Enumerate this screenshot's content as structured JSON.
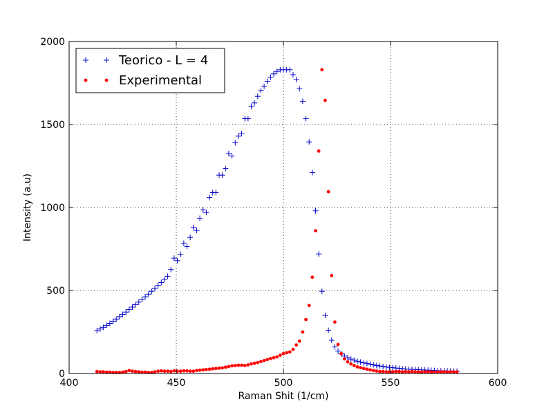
{
  "chart_data": {
    "type": "scatter",
    "xlabel": "Raman Shit (1/cm)",
    "ylabel": "Intensity (a.u)",
    "xlim": [
      400,
      600
    ],
    "ylim": [
      0,
      2000
    ],
    "x_ticks": [
      "400",
      "450",
      "500",
      "550",
      "600"
    ],
    "y_ticks": [
      "0",
      "500",
      "1000",
      "1500",
      "2000"
    ],
    "grid": "dotted",
    "legend_position": "top-left",
    "series": [
      {
        "name": "Teorico - L = 4",
        "marker": "plus",
        "color": "#0000cc",
        "points": [
          [
            413,
            258
          ],
          [
            414.5,
            268
          ],
          [
            416,
            278
          ],
          [
            417.5,
            290
          ],
          [
            419,
            302
          ],
          [
            420.5,
            315
          ],
          [
            422,
            328
          ],
          [
            423.5,
            342
          ],
          [
            425,
            356
          ],
          [
            426.5,
            370
          ],
          [
            428,
            385
          ],
          [
            429.5,
            400
          ],
          [
            431,
            415
          ],
          [
            432.5,
            430
          ],
          [
            434,
            446
          ],
          [
            435.5,
            462
          ],
          [
            437,
            478
          ],
          [
            438.5,
            495
          ],
          [
            440,
            512
          ],
          [
            441.5,
            530
          ],
          [
            443,
            548
          ],
          [
            444.5,
            567
          ],
          [
            446,
            586
          ],
          [
            447.5,
            626
          ],
          [
            449,
            695
          ],
          [
            450.5,
            680
          ],
          [
            452,
            718
          ],
          [
            453.5,
            785
          ],
          [
            455,
            765
          ],
          [
            456.5,
            820
          ],
          [
            458,
            880
          ],
          [
            459.5,
            862
          ],
          [
            461,
            935
          ],
          [
            462.5,
            985
          ],
          [
            464,
            970
          ],
          [
            465.5,
            1060
          ],
          [
            467,
            1090
          ],
          [
            468.5,
            1090
          ],
          [
            470,
            1195
          ],
          [
            471.5,
            1195
          ],
          [
            473,
            1235
          ],
          [
            474.5,
            1325
          ],
          [
            476,
            1310
          ],
          [
            477.5,
            1390
          ],
          [
            479,
            1430
          ],
          [
            480.5,
            1445
          ],
          [
            482,
            1535
          ],
          [
            483.5,
            1535
          ],
          [
            485,
            1610
          ],
          [
            486.5,
            1630
          ],
          [
            488,
            1670
          ],
          [
            489.5,
            1705
          ],
          [
            491,
            1730
          ],
          [
            492.5,
            1760
          ],
          [
            494,
            1785
          ],
          [
            495.5,
            1805
          ],
          [
            497,
            1820
          ],
          [
            498.5,
            1830
          ],
          [
            500,
            1830
          ],
          [
            501.5,
            1830
          ],
          [
            503,
            1830
          ],
          [
            504.5,
            1800
          ],
          [
            506,
            1770
          ],
          [
            507.5,
            1715
          ],
          [
            509,
            1640
          ],
          [
            510.5,
            1535
          ],
          [
            512,
            1395
          ],
          [
            513.5,
            1210
          ],
          [
            515,
            980
          ],
          [
            516.5,
            720
          ],
          [
            518,
            495
          ],
          [
            519.5,
            350
          ],
          [
            521,
            260
          ],
          [
            522.5,
            200
          ],
          [
            524,
            160
          ],
          [
            525.5,
            135
          ],
          [
            527,
            118
          ],
          [
            528.5,
            105
          ],
          [
            530,
            95
          ],
          [
            531.5,
            87
          ],
          [
            533,
            80
          ],
          [
            534.5,
            74
          ],
          [
            536,
            69
          ],
          [
            537.5,
            64
          ],
          [
            539,
            60
          ],
          [
            540.5,
            56
          ],
          [
            542,
            52
          ],
          [
            543.5,
            48
          ],
          [
            545,
            45
          ],
          [
            546.5,
            42
          ],
          [
            548,
            39
          ],
          [
            549.5,
            37
          ],
          [
            551,
            35
          ],
          [
            552.5,
            33
          ],
          [
            554,
            31
          ],
          [
            555.5,
            29
          ],
          [
            557,
            27
          ],
          [
            558.5,
            26
          ],
          [
            560,
            25
          ],
          [
            561.5,
            24
          ],
          [
            563,
            23
          ],
          [
            564.5,
            22
          ],
          [
            566,
            21
          ],
          [
            567.5,
            20
          ],
          [
            569,
            19
          ],
          [
            570.5,
            18
          ],
          [
            572,
            17
          ],
          [
            573.5,
            16
          ],
          [
            575,
            16
          ],
          [
            576.5,
            15
          ],
          [
            578,
            15
          ],
          [
            579.5,
            14
          ],
          [
            581,
            14
          ]
        ]
      },
      {
        "name": "Experimental",
        "marker": "dot",
        "color": "#ff0000",
        "points": [
          [
            413,
            12
          ],
          [
            414.5,
            10
          ],
          [
            416,
            10
          ],
          [
            417.5,
            8
          ],
          [
            419,
            8
          ],
          [
            420.5,
            6
          ],
          [
            422,
            6
          ],
          [
            423.5,
            6
          ],
          [
            425,
            8
          ],
          [
            426.5,
            12
          ],
          [
            428,
            18
          ],
          [
            429.5,
            14
          ],
          [
            431,
            12
          ],
          [
            432.5,
            10
          ],
          [
            434,
            8
          ],
          [
            435.5,
            8
          ],
          [
            437,
            6
          ],
          [
            438.5,
            6
          ],
          [
            440,
            10
          ],
          [
            441.5,
            14
          ],
          [
            443,
            16
          ],
          [
            444.5,
            14
          ],
          [
            446,
            14
          ],
          [
            447.5,
            12
          ],
          [
            449,
            16
          ],
          [
            450.5,
            14
          ],
          [
            452,
            14
          ],
          [
            453.5,
            16
          ],
          [
            455,
            16
          ],
          [
            456.5,
            14
          ],
          [
            458,
            14
          ],
          [
            459.5,
            18
          ],
          [
            461,
            20
          ],
          [
            462.5,
            22
          ],
          [
            464,
            24
          ],
          [
            465.5,
            26
          ],
          [
            467,
            28
          ],
          [
            468.5,
            30
          ],
          [
            470,
            32
          ],
          [
            471.5,
            34
          ],
          [
            473,
            38
          ],
          [
            474.5,
            42
          ],
          [
            476,
            46
          ],
          [
            477.5,
            48
          ],
          [
            479,
            50
          ],
          [
            480.5,
            50
          ],
          [
            482,
            48
          ],
          [
            483.5,
            52
          ],
          [
            485,
            58
          ],
          [
            486.5,
            62
          ],
          [
            488,
            66
          ],
          [
            489.5,
            72
          ],
          [
            491,
            78
          ],
          [
            492.5,
            84
          ],
          [
            494,
            90
          ],
          [
            495.5,
            95
          ],
          [
            497,
            100
          ],
          [
            498.5,
            110
          ],
          [
            500,
            120
          ],
          [
            501.5,
            125
          ],
          [
            503,
            130
          ],
          [
            504.5,
            145
          ],
          [
            506,
            172
          ],
          [
            507.5,
            195
          ],
          [
            509,
            250
          ],
          [
            510.5,
            325
          ],
          [
            512,
            410
          ],
          [
            513.5,
            580
          ],
          [
            515,
            860
          ],
          [
            516.5,
            1340
          ],
          [
            518,
            1830
          ],
          [
            519.5,
            1645
          ],
          [
            521,
            1095
          ],
          [
            522.5,
            590
          ],
          [
            524,
            310
          ],
          [
            525.5,
            175
          ],
          [
            527,
            120
          ],
          [
            528.5,
            88
          ],
          [
            530,
            70
          ],
          [
            531.5,
            58
          ],
          [
            533,
            48
          ],
          [
            534.5,
            40
          ],
          [
            536,
            35
          ],
          [
            537.5,
            30
          ],
          [
            539,
            26
          ],
          [
            540.5,
            22
          ],
          [
            542,
            18
          ],
          [
            543.5,
            15
          ],
          [
            545,
            12
          ],
          [
            546.5,
            12
          ],
          [
            548,
            10
          ],
          [
            549.5,
            10
          ],
          [
            551,
            10
          ],
          [
            552.5,
            12
          ],
          [
            554,
            12
          ],
          [
            555.5,
            10
          ],
          [
            557,
            12
          ],
          [
            558.5,
            10
          ],
          [
            560,
            12
          ],
          [
            561.5,
            10
          ],
          [
            563,
            10
          ],
          [
            564.5,
            8
          ],
          [
            566,
            10
          ],
          [
            567.5,
            10
          ],
          [
            569,
            10
          ],
          [
            570.5,
            8
          ],
          [
            572,
            10
          ],
          [
            573.5,
            10
          ],
          [
            575,
            10
          ],
          [
            576.5,
            8
          ],
          [
            578,
            10
          ],
          [
            579.5,
            10
          ],
          [
            581,
            10
          ]
        ]
      }
    ]
  }
}
